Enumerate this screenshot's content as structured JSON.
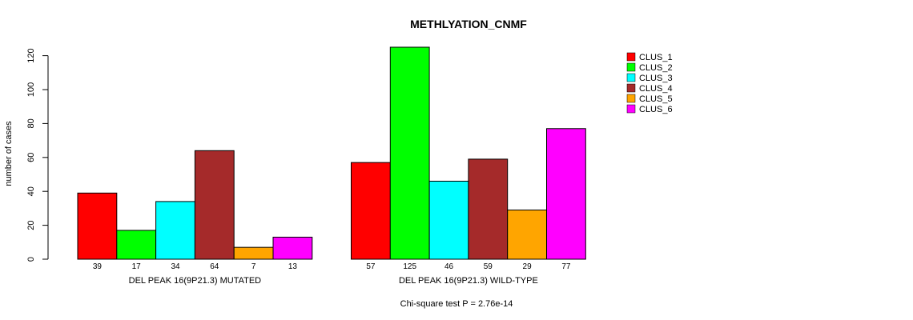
{
  "chart_data": {
    "type": "bar",
    "title": "METHLYATION_CNMF",
    "ylabel": "number of cases",
    "ylim": [
      0,
      125
    ],
    "yticks": [
      0,
      20,
      40,
      60,
      80,
      100,
      120
    ],
    "series": [
      {
        "name": "CLUS_1",
        "color": "#ff0000"
      },
      {
        "name": "CLUS_2",
        "color": "#00ff00"
      },
      {
        "name": "CLUS_3",
        "color": "#00ffff"
      },
      {
        "name": "CLUS_4",
        "color": "#a52a2a"
      },
      {
        "name": "CLUS_5",
        "color": "#ffa500"
      },
      {
        "name": "CLUS_6",
        "color": "#ff00ff"
      }
    ],
    "groups": [
      {
        "label": "DEL PEAK 16(9P21.3) MUTATED",
        "values": [
          39,
          17,
          34,
          64,
          7,
          13
        ]
      },
      {
        "label": "DEL PEAK 16(9P21.3) WILD-TYPE",
        "values": [
          57,
          125,
          46,
          59,
          29,
          77
        ]
      }
    ],
    "annotation": "Chi-square test P = 2.76e-14",
    "legend_position": "top-right"
  }
}
